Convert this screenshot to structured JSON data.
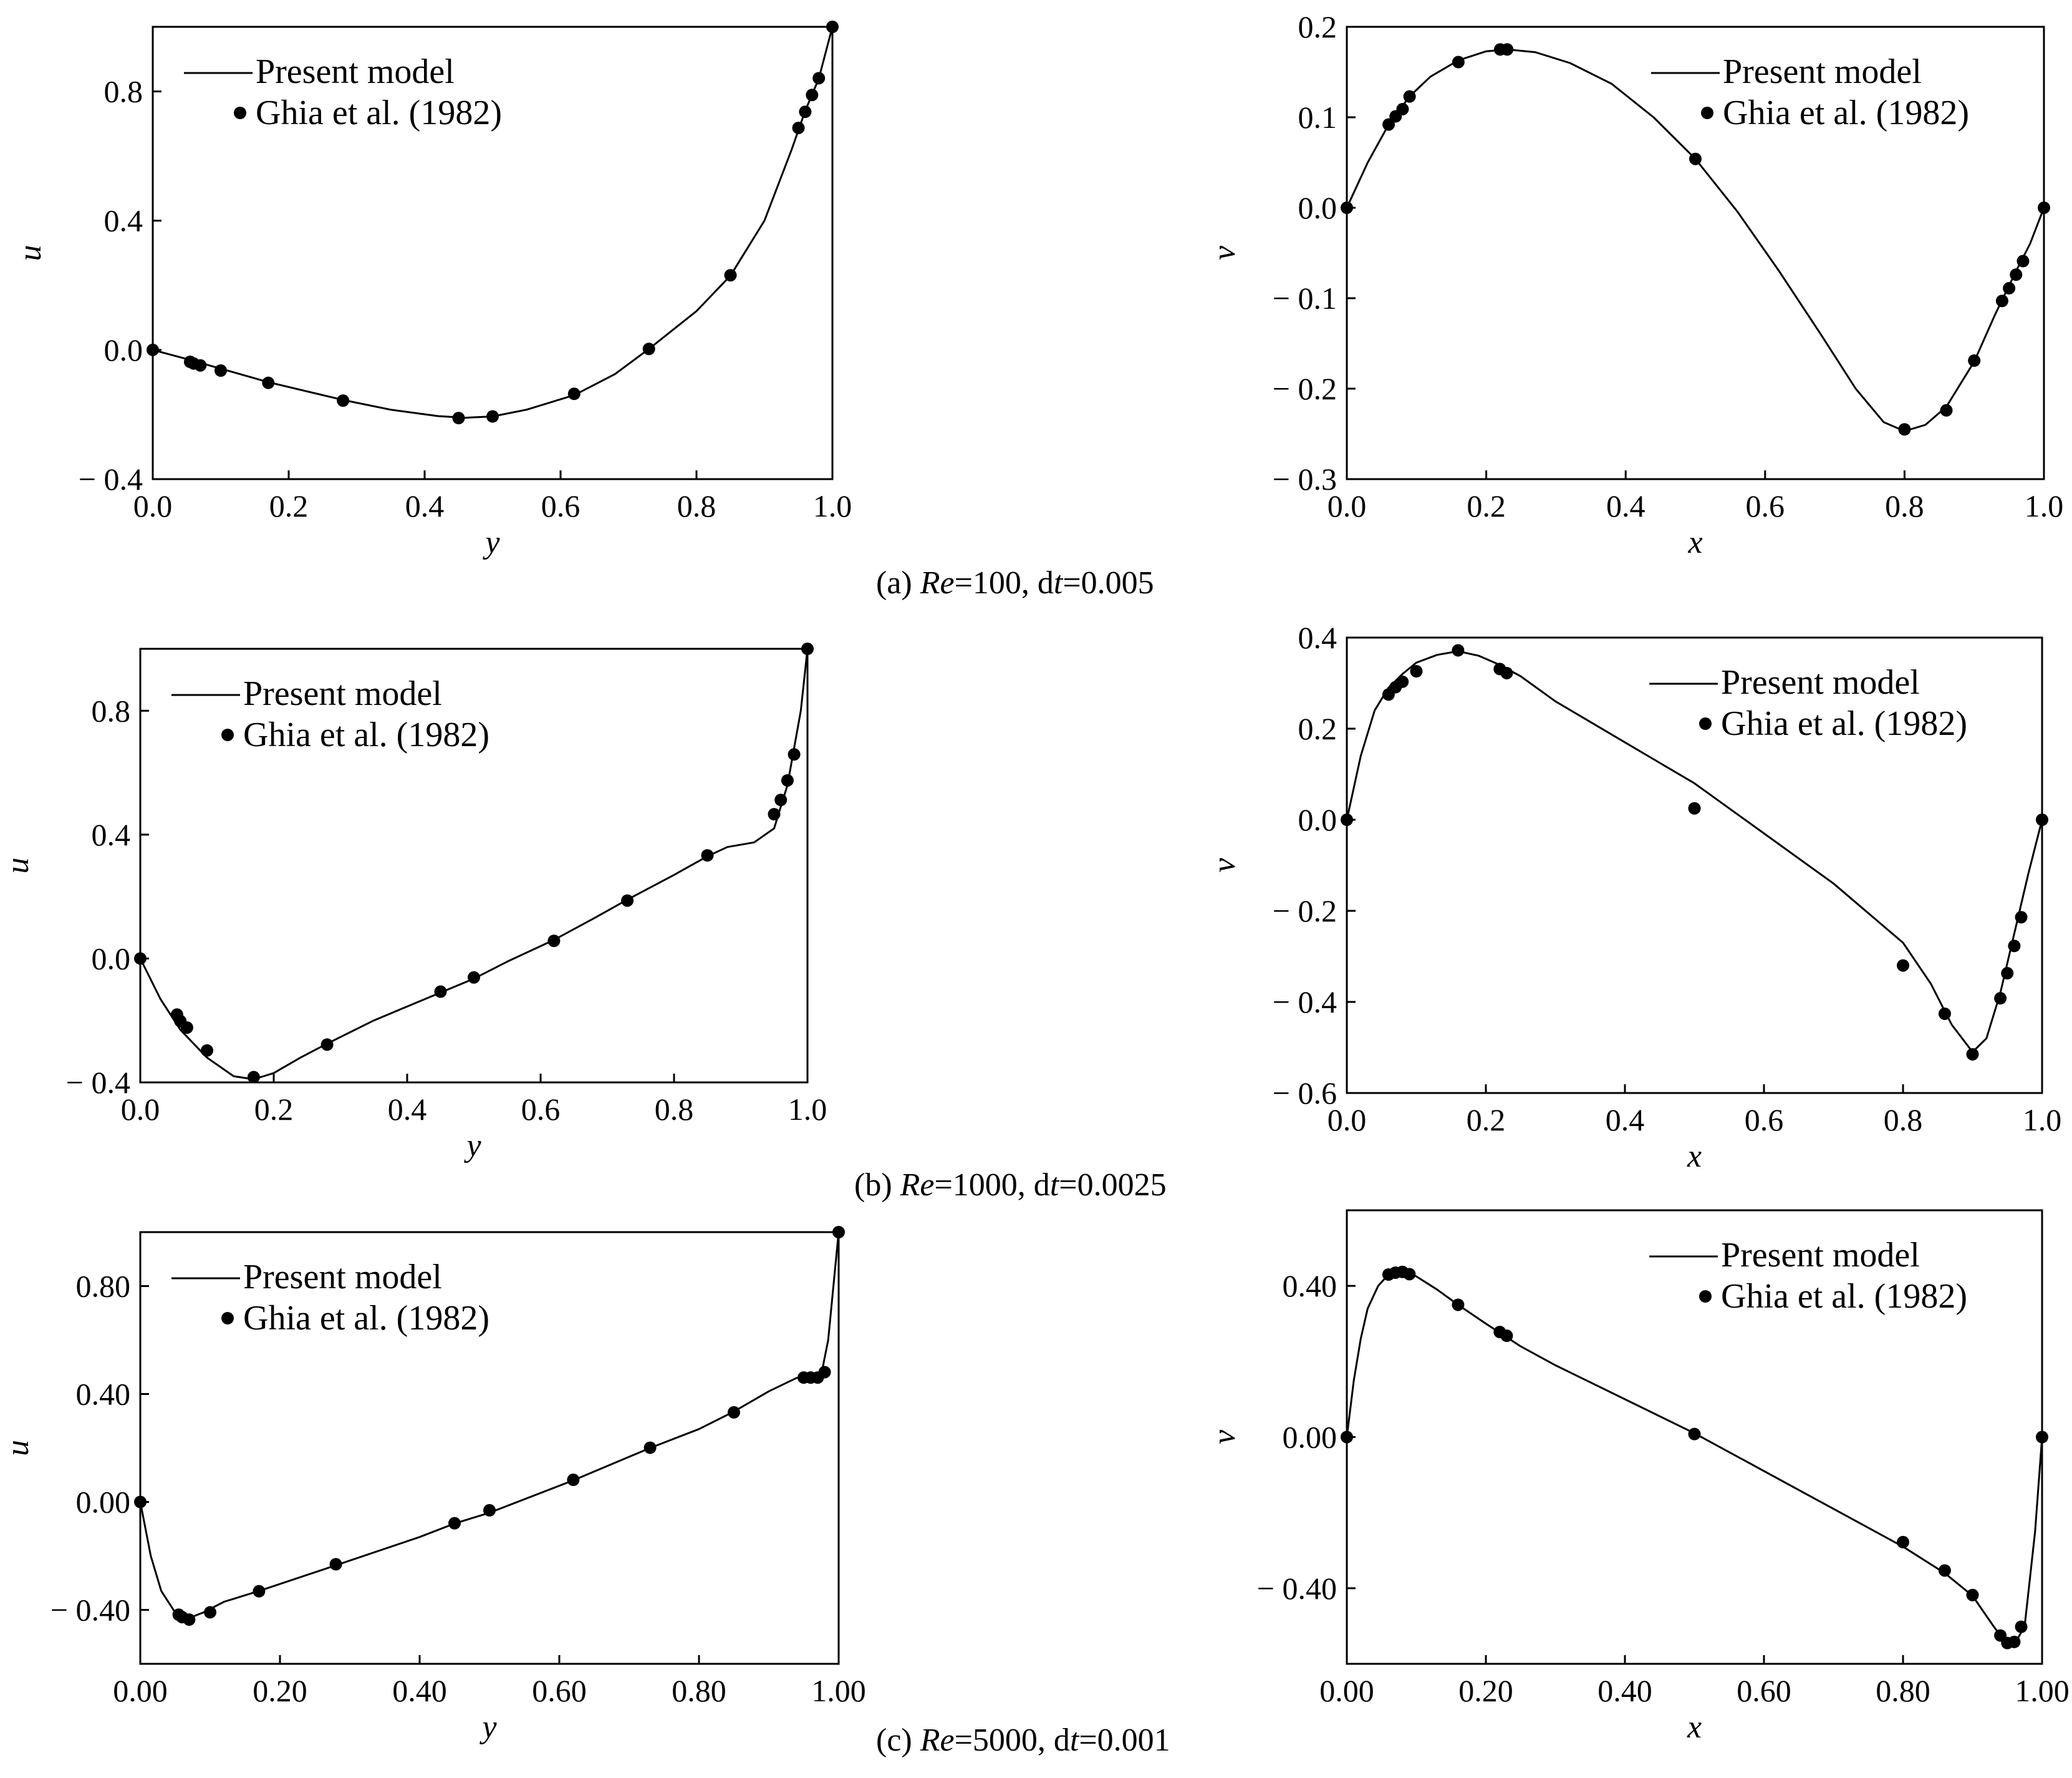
{
  "captions": [
    {
      "pre": "(a) ",
      "re": "Re",
      "re_val": "=100, d",
      "t": "t",
      "dt_val": "=0.005"
    },
    {
      "pre": "(b) ",
      "re": "Re",
      "re_val": "=1000, d",
      "t": "t",
      "dt_val": "=0.0025"
    },
    {
      "pre": "(c) ",
      "re": "Re",
      "re_val": "=5000, d",
      "t": "t",
      "dt_val": "=0.001"
    }
  ],
  "chart_data": [
    {
      "type": "line",
      "xlabel": "y",
      "ylabel": "u",
      "xlim": [
        0,
        1
      ],
      "ylim": [
        -0.4,
        1.0
      ],
      "xticks": [
        "0.0",
        "0.2",
        "0.4",
        "0.6",
        "0.8",
        "1.0"
      ],
      "yticks": [
        "− 0.4",
        "0.0",
        "0.4",
        "0.8"
      ],
      "ytick_values": [
        -0.4,
        0.0,
        0.4,
        0.8
      ],
      "legend": {
        "position": "top-left",
        "entries": [
          "Present model",
          "Ghia et al. (1982)"
        ]
      },
      "series": [
        {
          "name": "Present model",
          "kind": "line",
          "x": [
            0,
            0.05,
            0.1,
            0.17,
            0.28,
            0.35,
            0.42,
            0.46,
            0.5,
            0.55,
            0.62,
            0.68,
            0.73,
            0.8,
            0.85,
            0.9,
            0.94,
            0.96,
            0.97,
            0.98,
            0.99,
            1.0
          ],
          "y": [
            0,
            -0.028,
            -0.058,
            -0.1,
            -0.155,
            -0.185,
            -0.205,
            -0.21,
            -0.206,
            -0.185,
            -0.14,
            -0.075,
            0.003,
            0.12,
            0.23,
            0.4,
            0.62,
            0.74,
            0.79,
            0.84,
            0.92,
            1.0
          ]
        },
        {
          "name": "Ghia et al. (1982)",
          "kind": "scatter",
          "x": [
            0,
            0.055,
            0.06,
            0.07,
            0.1,
            0.17,
            0.28,
            0.45,
            0.5,
            0.62,
            0.73,
            0.85,
            0.95,
            0.96,
            0.97,
            0.98,
            1.0
          ],
          "y": [
            0,
            -0.037,
            -0.042,
            -0.048,
            -0.064,
            -0.102,
            -0.157,
            -0.211,
            -0.206,
            -0.136,
            0.003,
            0.231,
            0.687,
            0.737,
            0.789,
            0.841,
            1.0
          ]
        }
      ]
    },
    {
      "type": "line",
      "xlabel": "x",
      "ylabel": "v",
      "xlim": [
        0,
        1
      ],
      "ylim": [
        -0.3,
        0.2
      ],
      "xticks": [
        "0.0",
        "0.2",
        "0.4",
        "0.6",
        "0.8",
        "1.0"
      ],
      "yticks": [
        "0.2",
        "0.1",
        "0.0",
        "− 0.1",
        "− 0.2",
        "− 0.3"
      ],
      "ytick_values": [
        0.2,
        0.1,
        0.0,
        -0.1,
        -0.2,
        -0.3
      ],
      "legend": {
        "position": "top-right",
        "entries": [
          "Present model",
          "Ghia et al. (1982)"
        ]
      },
      "series": [
        {
          "name": "Present model",
          "kind": "line",
          "x": [
            0,
            0.03,
            0.06,
            0.09,
            0.12,
            0.16,
            0.2,
            0.23,
            0.27,
            0.32,
            0.38,
            0.44,
            0.5,
            0.56,
            0.62,
            0.68,
            0.73,
            0.77,
            0.8,
            0.83,
            0.86,
            0.9,
            0.93,
            0.96,
            0.98,
            1.0
          ],
          "y": [
            0,
            0.05,
            0.092,
            0.123,
            0.145,
            0.163,
            0.173,
            0.175,
            0.172,
            0.16,
            0.137,
            0.1,
            0.054,
            -0.004,
            -0.07,
            -0.14,
            -0.2,
            -0.237,
            -0.247,
            -0.24,
            -0.22,
            -0.17,
            -0.118,
            -0.07,
            -0.04,
            0
          ]
        },
        {
          "name": "Ghia et al. (1982)",
          "kind": "scatter",
          "x": [
            0,
            0.06,
            0.07,
            0.08,
            0.09,
            0.16,
            0.22,
            0.23,
            0.5,
            0.8,
            0.86,
            0.9,
            0.94,
            0.95,
            0.96,
            0.97,
            1.0
          ],
          "y": [
            0,
            0.092,
            0.101,
            0.109,
            0.123,
            0.161,
            0.175,
            0.175,
            0.054,
            -0.245,
            -0.224,
            -0.169,
            -0.103,
            -0.089,
            -0.074,
            -0.059,
            0
          ]
        }
      ]
    },
    {
      "type": "line",
      "xlabel": "y",
      "ylabel": "u",
      "xlim": [
        0,
        1
      ],
      "ylim": [
        -0.4,
        1.0
      ],
      "xticks": [
        "0.0",
        "0.2",
        "0.4",
        "0.6",
        "0.8",
        "1.0"
      ],
      "yticks": [
        "− 0.4",
        "0.0",
        "0.4",
        "0.8"
      ],
      "ytick_values": [
        -0.4,
        0.0,
        0.4,
        0.8
      ],
      "legend": {
        "position": "top-left",
        "entries": [
          "Present model",
          "Ghia et al. (1982)"
        ]
      },
      "series": [
        {
          "name": "Present model",
          "kind": "line",
          "x": [
            0,
            0.03,
            0.06,
            0.1,
            0.14,
            0.17,
            0.2,
            0.24,
            0.28,
            0.35,
            0.45,
            0.5,
            0.55,
            0.62,
            0.68,
            0.73,
            0.8,
            0.85,
            0.88,
            0.92,
            0.95,
            0.97,
            0.99,
            1.0
          ],
          "y": [
            0,
            -0.13,
            -0.23,
            -0.32,
            -0.38,
            -0.39,
            -0.37,
            -0.32,
            -0.275,
            -0.2,
            -0.11,
            -0.065,
            -0.01,
            0.06,
            0.13,
            0.19,
            0.27,
            0.33,
            0.36,
            0.375,
            0.42,
            0.56,
            0.8,
            1.0
          ]
        },
        {
          "name": "Ghia et al. (1982)",
          "kind": "scatter",
          "x": [
            0,
            0.055,
            0.06,
            0.07,
            0.1,
            0.17,
            0.28,
            0.45,
            0.5,
            0.62,
            0.73,
            0.85,
            0.95,
            0.96,
            0.97,
            0.98,
            1.0
          ],
          "y": [
            0,
            -0.181,
            -0.202,
            -0.223,
            -0.297,
            -0.383,
            -0.278,
            -0.107,
            -0.061,
            0.057,
            0.187,
            0.333,
            0.466,
            0.512,
            0.575,
            0.659,
            1.0
          ]
        }
      ]
    },
    {
      "type": "line",
      "xlabel": "x",
      "ylabel": "v",
      "xlim": [
        0,
        1
      ],
      "ylim": [
        -0.6,
        0.4
      ],
      "xticks": [
        "0.0",
        "0.2",
        "0.4",
        "0.6",
        "0.8",
        "1.0"
      ],
      "yticks": [
        "0.4",
        "0.2",
        "0.0",
        "− 0.2",
        "− 0.4",
        "− 0.6"
      ],
      "ytick_values": [
        0.4,
        0.2,
        0.0,
        -0.2,
        -0.4,
        -0.6
      ],
      "legend": {
        "position": "top-right",
        "entries": [
          "Present model",
          "Ghia et al. (1982)"
        ]
      },
      "series": [
        {
          "name": "Present model",
          "kind": "line",
          "x": [
            0,
            0.02,
            0.04,
            0.06,
            0.08,
            0.1,
            0.13,
            0.16,
            0.19,
            0.22,
            0.25,
            0.3,
            0.4,
            0.5,
            0.6,
            0.7,
            0.8,
            0.84,
            0.87,
            0.9,
            0.92,
            0.94,
            0.96,
            0.98,
            1.0
          ],
          "y": [
            0,
            0.14,
            0.24,
            0.29,
            0.32,
            0.345,
            0.362,
            0.37,
            0.36,
            0.34,
            0.315,
            0.26,
            0.17,
            0.08,
            -0.03,
            -0.14,
            -0.27,
            -0.36,
            -0.45,
            -0.51,
            -0.48,
            -0.38,
            -0.25,
            -0.12,
            0
          ]
        },
        {
          "name": "Ghia et al. (1982)",
          "kind": "scatter",
          "x": [
            0,
            0.06,
            0.07,
            0.08,
            0.1,
            0.16,
            0.22,
            0.23,
            0.5,
            0.8,
            0.86,
            0.9,
            0.94,
            0.95,
            0.96,
            0.97,
            1.0
          ],
          "y": [
            0,
            0.275,
            0.291,
            0.303,
            0.326,
            0.372,
            0.331,
            0.322,
            0.025,
            -0.32,
            -0.426,
            -0.515,
            -0.392,
            -0.337,
            -0.277,
            -0.214,
            0
          ]
        }
      ]
    },
    {
      "type": "line",
      "xlabel": "y",
      "ylabel": "u",
      "xlim": [
        0,
        1
      ],
      "ylim": [
        -0.6,
        1.0
      ],
      "xticks": [
        "0.00",
        "0.20",
        "0.40",
        "0.60",
        "0.80",
        "1.00"
      ],
      "yticks": [
        "− 0.40",
        "0.00",
        "0.40",
        "0.80"
      ],
      "ytick_values": [
        -0.4,
        0.0,
        0.4,
        0.8
      ],
      "legend": {
        "position": "top-left",
        "entries": [
          "Present model",
          "Ghia et al. (1982)"
        ]
      },
      "series": [
        {
          "name": "Present model",
          "kind": "line",
          "x": [
            0,
            0.015,
            0.03,
            0.05,
            0.07,
            0.09,
            0.12,
            0.17,
            0.28,
            0.4,
            0.45,
            0.5,
            0.62,
            0.73,
            0.8,
            0.85,
            0.9,
            0.94,
            0.96,
            0.975,
            0.985,
            1.0
          ],
          "y": [
            0,
            -0.2,
            -0.33,
            -0.41,
            -0.43,
            -0.41,
            -0.37,
            -0.33,
            -0.235,
            -0.13,
            -0.08,
            -0.04,
            0.08,
            0.2,
            0.27,
            0.335,
            0.41,
            0.46,
            0.46,
            0.47,
            0.6,
            1.0
          ]
        },
        {
          "name": "Ghia et al. (1982)",
          "kind": "scatter",
          "x": [
            0,
            0.055,
            0.06,
            0.07,
            0.1,
            0.17,
            0.28,
            0.45,
            0.5,
            0.62,
            0.73,
            0.85,
            0.95,
            0.96,
            0.97,
            0.98,
            1.0
          ],
          "y": [
            0,
            -0.418,
            -0.427,
            -0.436,
            -0.409,
            -0.331,
            -0.231,
            -0.079,
            -0.031,
            0.082,
            0.201,
            0.332,
            0.461,
            0.461,
            0.461,
            0.481,
            1.0
          ]
        }
      ]
    },
    {
      "type": "line",
      "xlabel": "x",
      "ylabel": "v",
      "xlim": [
        0,
        1
      ],
      "ylim": [
        -0.6,
        0.6
      ],
      "xticks": [
        "0.00",
        "0.20",
        "0.40",
        "0.60",
        "0.80",
        "1.00"
      ],
      "yticks": [
        "0.40",
        "0.00",
        "− 0.40"
      ],
      "ytick_values": [
        0.4,
        0.0,
        -0.4
      ],
      "legend": {
        "position": "top-right",
        "entries": [
          "Present model",
          "Ghia et al. (1982)"
        ]
      },
      "series": [
        {
          "name": "Present model",
          "kind": "line",
          "x": [
            0,
            0.01,
            0.02,
            0.03,
            0.045,
            0.06,
            0.08,
            0.1,
            0.13,
            0.16,
            0.2,
            0.25,
            0.3,
            0.4,
            0.5,
            0.6,
            0.7,
            0.8,
            0.86,
            0.9,
            0.93,
            0.95,
            0.96,
            0.975,
            0.99,
            1.0
          ],
          "y": [
            0,
            0.15,
            0.26,
            0.34,
            0.4,
            0.43,
            0.44,
            0.425,
            0.39,
            0.35,
            0.3,
            0.24,
            0.19,
            0.1,
            0.01,
            -0.09,
            -0.19,
            -0.29,
            -0.36,
            -0.42,
            -0.5,
            -0.55,
            -0.55,
            -0.5,
            -0.25,
            0
          ]
        },
        {
          "name": "Ghia et al. (1982)",
          "kind": "scatter",
          "x": [
            0,
            0.06,
            0.07,
            0.08,
            0.09,
            0.16,
            0.22,
            0.23,
            0.5,
            0.8,
            0.86,
            0.9,
            0.94,
            0.95,
            0.96,
            0.97,
            1.0
          ],
          "y": [
            0,
            0.43,
            0.435,
            0.437,
            0.431,
            0.35,
            0.278,
            0.268,
            0.008,
            -0.278,
            -0.353,
            -0.418,
            -0.525,
            -0.545,
            -0.542,
            -0.502,
            0
          ]
        }
      ]
    }
  ]
}
